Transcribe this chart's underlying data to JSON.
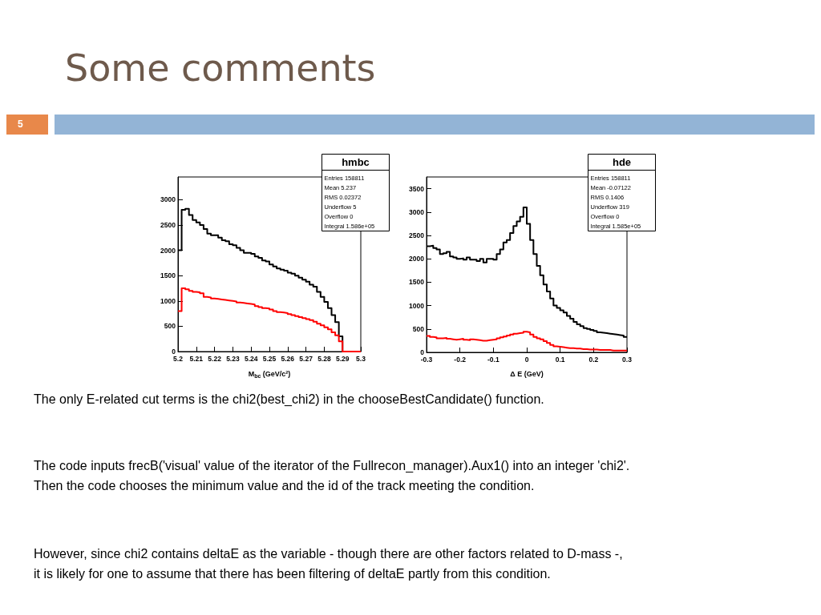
{
  "chart_data": [
    {
      "type": "histogram",
      "title": "hmbc",
      "xlabel": "M$_{bc}$ (GeV/c²)",
      "bins": [
        5.2,
        5.202,
        5.204,
        5.206,
        5.208,
        5.21,
        5.212,
        5.214,
        5.216,
        5.218,
        5.22,
        5.222,
        5.224,
        5.226,
        5.228,
        5.23,
        5.232,
        5.234,
        5.236,
        5.238,
        5.24,
        5.242,
        5.244,
        5.246,
        5.248,
        5.25,
        5.252,
        5.254,
        5.256,
        5.258,
        5.26,
        5.262,
        5.264,
        5.266,
        5.268,
        5.27,
        5.272,
        5.274,
        5.276,
        5.278,
        5.28,
        5.282,
        5.284,
        5.286,
        5.288,
        5.29,
        5.292,
        5.294,
        5.296,
        5.298,
        5.3
      ],
      "series": [
        {
          "color": "#000000",
          "values": [
            2000,
            2800,
            2820,
            2700,
            2600,
            2550,
            2500,
            2420,
            2330,
            2300,
            2300,
            2250,
            2200,
            2180,
            2120,
            2100,
            2050,
            2000,
            1950,
            1950,
            1930,
            1880,
            1850,
            1800,
            1780,
            1720,
            1680,
            1640,
            1620,
            1600,
            1560,
            1540,
            1500,
            1460,
            1420,
            1380,
            1320,
            1280,
            1180,
            1080,
            980,
            860,
            720,
            580,
            300,
            0,
            0,
            0,
            0,
            0
          ]
        },
        {
          "color": "#ff0000",
          "values": [
            800,
            1250,
            1230,
            1200,
            1180,
            1170,
            1150,
            1080,
            1070,
            1050,
            1040,
            1030,
            1020,
            1010,
            1000,
            990,
            970,
            960,
            950,
            940,
            930,
            900,
            880,
            860,
            850,
            830,
            800,
            780,
            770,
            760,
            740,
            720,
            700,
            680,
            660,
            640,
            620,
            590,
            550,
            520,
            480,
            440,
            380,
            320,
            200,
            0,
            0,
            0,
            0,
            0
          ]
        }
      ],
      "xlim": [
        5.2,
        5.3
      ],
      "xticks": [
        5.2,
        5.21,
        5.22,
        5.23,
        5.24,
        5.25,
        5.26,
        5.27,
        5.28,
        5.29,
        5.3
      ],
      "ylim": [
        0,
        3450
      ],
      "yticks": [
        0,
        500,
        1000,
        1500,
        2000,
        2500,
        3000
      ],
      "annotations": [
        "Entries 158811",
        "Mean 5.237",
        "RMS 0.02372",
        "Underflow 5",
        "Overflow 0",
        "Integral 1.586e+05"
      ],
      "grid": false
    },
    {
      "type": "histogram",
      "title": "hde",
      "xlabel": "Δ E (GeV)",
      "bins": [
        -0.3,
        -0.29,
        -0.28,
        -0.27,
        -0.26,
        -0.25,
        -0.24,
        -0.23,
        -0.22,
        -0.21,
        -0.2,
        -0.19,
        -0.18,
        -0.17,
        -0.16,
        -0.15,
        -0.14,
        -0.13,
        -0.12,
        -0.11,
        -0.1,
        -0.09,
        -0.08,
        -0.07,
        -0.06,
        -0.05,
        -0.04,
        -0.03,
        -0.02,
        -0.01,
        0,
        0.01,
        0.02,
        0.03,
        0.04,
        0.05,
        0.06,
        0.07,
        0.08,
        0.09,
        0.1,
        0.11,
        0.12,
        0.13,
        0.14,
        0.15,
        0.16,
        0.17,
        0.18,
        0.19,
        0.2,
        0.21,
        0.22,
        0.23,
        0.24,
        0.25,
        0.26,
        0.27,
        0.28,
        0.29,
        0.3
      ],
      "series": [
        {
          "color": "#000000",
          "values": [
            2270,
            2280,
            2230,
            2200,
            2100,
            2120,
            2150,
            2050,
            2030,
            2000,
            2010,
            1980,
            2030,
            1980,
            1980,
            1950,
            2000,
            1920,
            2000,
            2000,
            1980,
            2100,
            2200,
            2350,
            2400,
            2550,
            2700,
            2800,
            2900,
            3100,
            2750,
            2400,
            2100,
            1850,
            1650,
            1450,
            1300,
            1150,
            1000,
            950,
            900,
            850,
            780,
            720,
            650,
            600,
            560,
            520,
            500,
            480,
            460,
            430,
            420,
            410,
            400,
            390,
            380,
            370,
            360,
            330
          ]
        },
        {
          "color": "#ff0000",
          "values": [
            350,
            330,
            320,
            300,
            300,
            310,
            290,
            280,
            270,
            280,
            290,
            270,
            260,
            280,
            270,
            260,
            250,
            250,
            260,
            270,
            280,
            300,
            320,
            340,
            360,
            380,
            400,
            410,
            420,
            440,
            430,
            380,
            330,
            300,
            280,
            240,
            200,
            160,
            130,
            120,
            110,
            100,
            90,
            90,
            80,
            80,
            70,
            70,
            60,
            60,
            60,
            50,
            50,
            50,
            50,
            40,
            40,
            40,
            40,
            40
          ]
        }
      ],
      "xlim": [
        -0.3,
        0.3
      ],
      "xticks": [
        -0.3,
        -0.2,
        -0.1,
        0,
        0.1,
        0.2,
        0.3
      ],
      "ylim": [
        0,
        3750
      ],
      "yticks": [
        0,
        500,
        1000,
        1500,
        2000,
        2500,
        3000,
        3500
      ],
      "annotations": [
        "Entries 158811",
        "Mean -0.07122",
        "RMS 0.1406",
        "Underflow 319",
        "Overflow 0",
        "Integral 1.585e+05"
      ],
      "grid": false
    },
    {
      "type": "other",
      "title": "Some comments",
      "annotations": [
        "5",
        "The only E-related cut terms is the chi2(best_chi2) in the chooseBestCandidate() function.",
        "The code inputs frecB('visual' value of the iterator of the Fullrecon_manager).Aux1() into an integer 'chi2'.",
        "Then the code chooses the minimum value and the id of the track meeting the condition.",
        "However, since chi2 contains deltaE as the variable - though there are other factors related to D-mass -,",
        "it is likely for one to assume that there has been filtering of deltaE partly from this condition."
      ]
    }
  ]
}
